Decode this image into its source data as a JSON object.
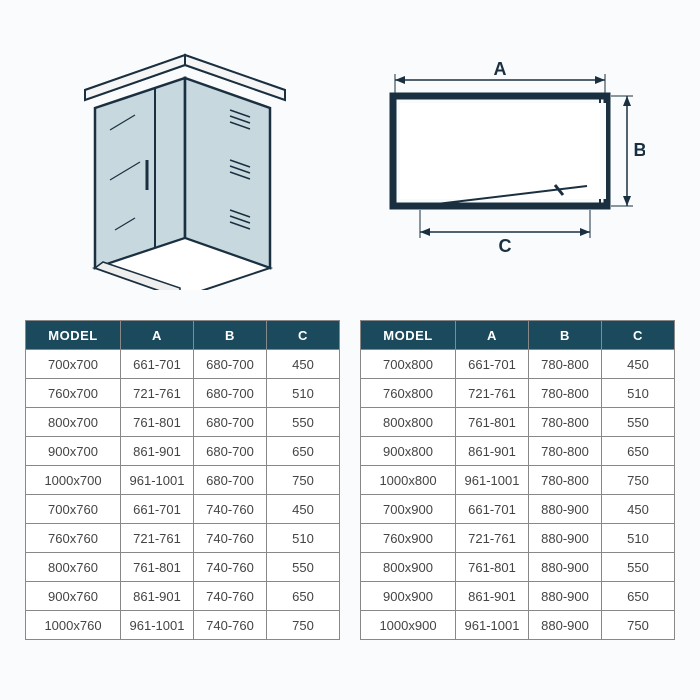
{
  "colors": {
    "header_bg": "#1a4a5c",
    "header_text": "#ffffff",
    "border": "#888888",
    "cell_bg": "#ffffff",
    "cell_text": "#444444",
    "page_bg": "#fafbfc",
    "glass_fill": "#b5cdd6",
    "line_color": "#1a3040"
  },
  "diagram": {
    "labels": {
      "A": "A",
      "B": "B",
      "C": "C"
    }
  },
  "table_left": {
    "headers": [
      "MODEL",
      "A",
      "B",
      "C"
    ],
    "rows": [
      [
        "700x700",
        "661-701",
        "680-700",
        "450"
      ],
      [
        "760x700",
        "721-761",
        "680-700",
        "510"
      ],
      [
        "800x700",
        "761-801",
        "680-700",
        "550"
      ],
      [
        "900x700",
        "861-901",
        "680-700",
        "650"
      ],
      [
        "1000x700",
        "961-1001",
        "680-700",
        "750"
      ],
      [
        "700x760",
        "661-701",
        "740-760",
        "450"
      ],
      [
        "760x760",
        "721-761",
        "740-760",
        "510"
      ],
      [
        "800x760",
        "761-801",
        "740-760",
        "550"
      ],
      [
        "900x760",
        "861-901",
        "740-760",
        "650"
      ],
      [
        "1000x760",
        "961-1001",
        "740-760",
        "750"
      ]
    ]
  },
  "table_right": {
    "headers": [
      "MODEL",
      "A",
      "B",
      "C"
    ],
    "rows": [
      [
        "700x800",
        "661-701",
        "780-800",
        "450"
      ],
      [
        "760x800",
        "721-761",
        "780-800",
        "510"
      ],
      [
        "800x800",
        "761-801",
        "780-800",
        "550"
      ],
      [
        "900x800",
        "861-901",
        "780-800",
        "650"
      ],
      [
        "1000x800",
        "961-1001",
        "780-800",
        "750"
      ],
      [
        "700x900",
        "661-701",
        "880-900",
        "450"
      ],
      [
        "760x900",
        "721-761",
        "880-900",
        "510"
      ],
      [
        "800x900",
        "761-801",
        "880-900",
        "550"
      ],
      [
        "900x900",
        "861-901",
        "880-900",
        "650"
      ],
      [
        "1000x900",
        "961-1001",
        "880-900",
        "750"
      ]
    ]
  }
}
